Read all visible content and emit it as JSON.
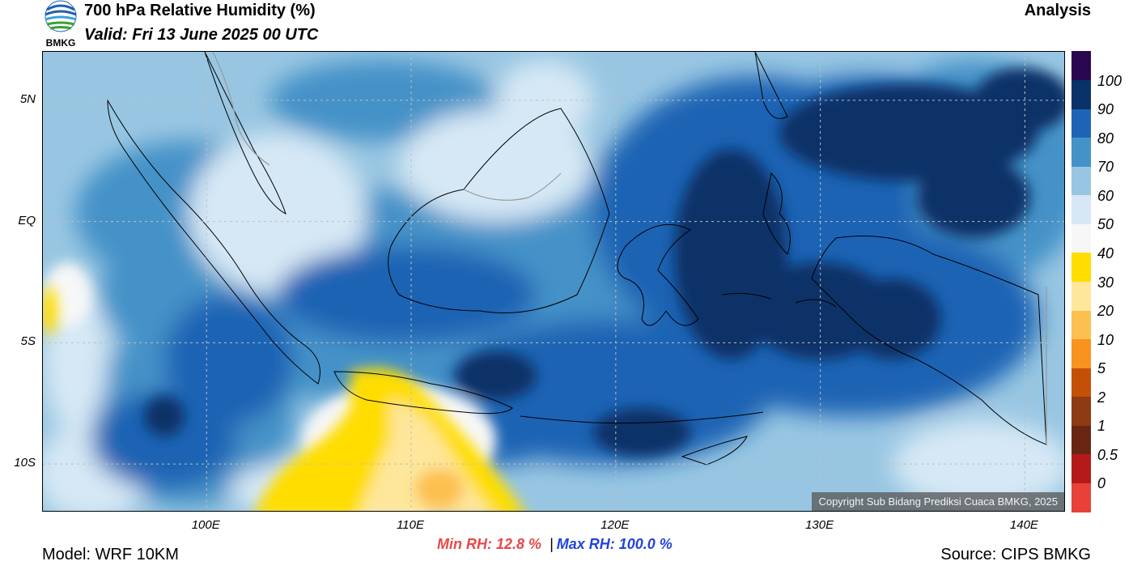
{
  "header": {
    "title": "700 hPa Relative Humidity (%)",
    "valid": "Valid: Fri 13 June 2025 00 UTC",
    "mode": "Analysis",
    "logo_text": "BMKG"
  },
  "map": {
    "lon_range": [
      92,
      142
    ],
    "lat_range": [
      -12,
      7
    ],
    "lat_ticks": [
      {
        "lat": 5,
        "label": "5N"
      },
      {
        "lat": 0,
        "label": "EQ"
      },
      {
        "lat": -5,
        "label": "5S"
      },
      {
        "lat": -10,
        "label": "10S"
      }
    ],
    "lon_ticks": [
      {
        "lon": 100,
        "label": "100E"
      },
      {
        "lon": 110,
        "label": "110E"
      },
      {
        "lon": 120,
        "label": "120E"
      },
      {
        "lon": 130,
        "label": "130E"
      },
      {
        "lon": 140,
        "label": "140E"
      }
    ],
    "grid": true,
    "copyright": "Copyright Sub Bidang Prediksi Cuaca BMKG, 2025"
  },
  "colorbar": {
    "labels": [
      "100",
      "90",
      "80",
      "70",
      "60",
      "50",
      "40",
      "30",
      "20",
      "10",
      "5",
      "2",
      "1",
      "0.5",
      "0"
    ],
    "colors": [
      "#e8413a",
      "#b41a1a",
      "#6a2512",
      "#8e3a12",
      "#c45008",
      "#f7931e",
      "#fcc050",
      "#fee69a",
      "#ffdd00",
      "#f7f7f7",
      "#d6e8f5",
      "#98c6e2",
      "#4592c8",
      "#1f64b4",
      "#093268",
      "#2a0650"
    ]
  },
  "stats": {
    "min": "Min RH:  12.8 %",
    "separator": "|",
    "max": "Max RH: 100.0 %"
  },
  "footer": {
    "model": "Model: WRF 10KM",
    "source": "Source: CIPS BMKG"
  },
  "palette": {
    "rh_90_100": "#093268",
    "rh_80_90": "#1f64b4",
    "rh_70_80": "#4592c8",
    "rh_60_70": "#98c6e2",
    "rh_50_60": "#d6e8f5",
    "rh_40_50": "#f7f7f7",
    "rh_30_40": "#ffdd00",
    "rh_20_30": "#fee69a",
    "rh_10_20": "#fcc050"
  }
}
